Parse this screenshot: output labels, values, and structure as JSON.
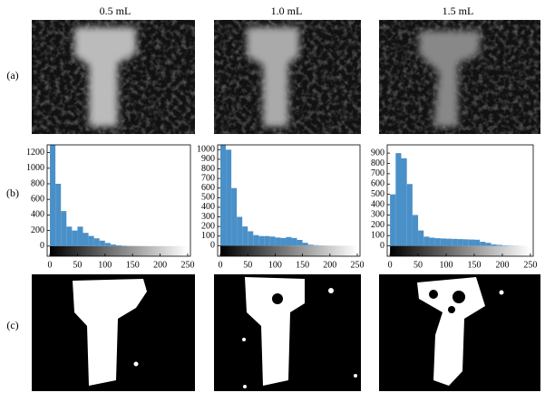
{
  "columns": [
    "0.5 mL",
    "1.0 mL",
    "1.5 mL"
  ],
  "rows": [
    "(a)",
    "(b)",
    "(c)"
  ],
  "chart_data": [
    {
      "type": "histogram",
      "color": "#4a90c8",
      "bins": [
        0,
        10,
        20,
        30,
        40,
        50,
        60,
        70,
        80,
        90,
        100,
        110,
        120,
        130,
        140,
        150,
        160,
        170,
        180,
        190,
        200,
        210,
        220,
        230,
        240,
        250
      ],
      "values": [
        1300,
        800,
        450,
        250,
        200,
        250,
        170,
        130,
        100,
        70,
        40,
        20,
        10,
        5,
        3,
        2,
        1,
        0,
        0,
        0,
        0,
        0,
        0,
        0,
        0
      ],
      "xlim": [
        -5,
        255
      ],
      "xticks": [
        0,
        50,
        100,
        150,
        200,
        250
      ],
      "ylim": [
        -130,
        1300
      ],
      "yticks": [
        0,
        200,
        400,
        600,
        800,
        1000,
        1200
      ]
    },
    {
      "type": "histogram",
      "color": "#4a90c8",
      "bins": [
        0,
        10,
        20,
        30,
        40,
        50,
        60,
        70,
        80,
        90,
        100,
        110,
        120,
        130,
        140,
        150,
        160,
        170,
        180,
        190,
        200,
        210,
        220,
        230,
        240,
        250
      ],
      "values": [
        1050,
        1000,
        600,
        300,
        200,
        150,
        110,
        100,
        100,
        95,
        85,
        80,
        90,
        80,
        60,
        30,
        10,
        5,
        2,
        1,
        0,
        0,
        0,
        0,
        0
      ],
      "xlim": [
        -5,
        255
      ],
      "xticks": [
        0,
        50,
        100,
        150,
        200,
        250
      ],
      "ylim": [
        -110,
        1050
      ],
      "yticks": [
        0,
        100,
        200,
        300,
        400,
        500,
        600,
        700,
        800,
        900,
        1000
      ]
    },
    {
      "type": "histogram",
      "color": "#4a90c8",
      "bins": [
        0,
        10,
        20,
        30,
        40,
        50,
        60,
        70,
        80,
        90,
        100,
        110,
        120,
        130,
        140,
        150,
        160,
        170,
        180,
        190,
        200,
        210,
        220,
        230,
        240,
        250
      ],
      "values": [
        500,
        900,
        850,
        600,
        300,
        150,
        90,
        80,
        75,
        72,
        70,
        68,
        66,
        64,
        62,
        60,
        40,
        30,
        15,
        10,
        5,
        3,
        2,
        1,
        0
      ],
      "xlim": [
        -5,
        255
      ],
      "xticks": [
        0,
        50,
        100,
        150,
        200,
        250
      ],
      "ylim": [
        -100,
        980
      ],
      "yticks": [
        0,
        100,
        200,
        300,
        400,
        500,
        600,
        700,
        800,
        900
      ]
    }
  ]
}
